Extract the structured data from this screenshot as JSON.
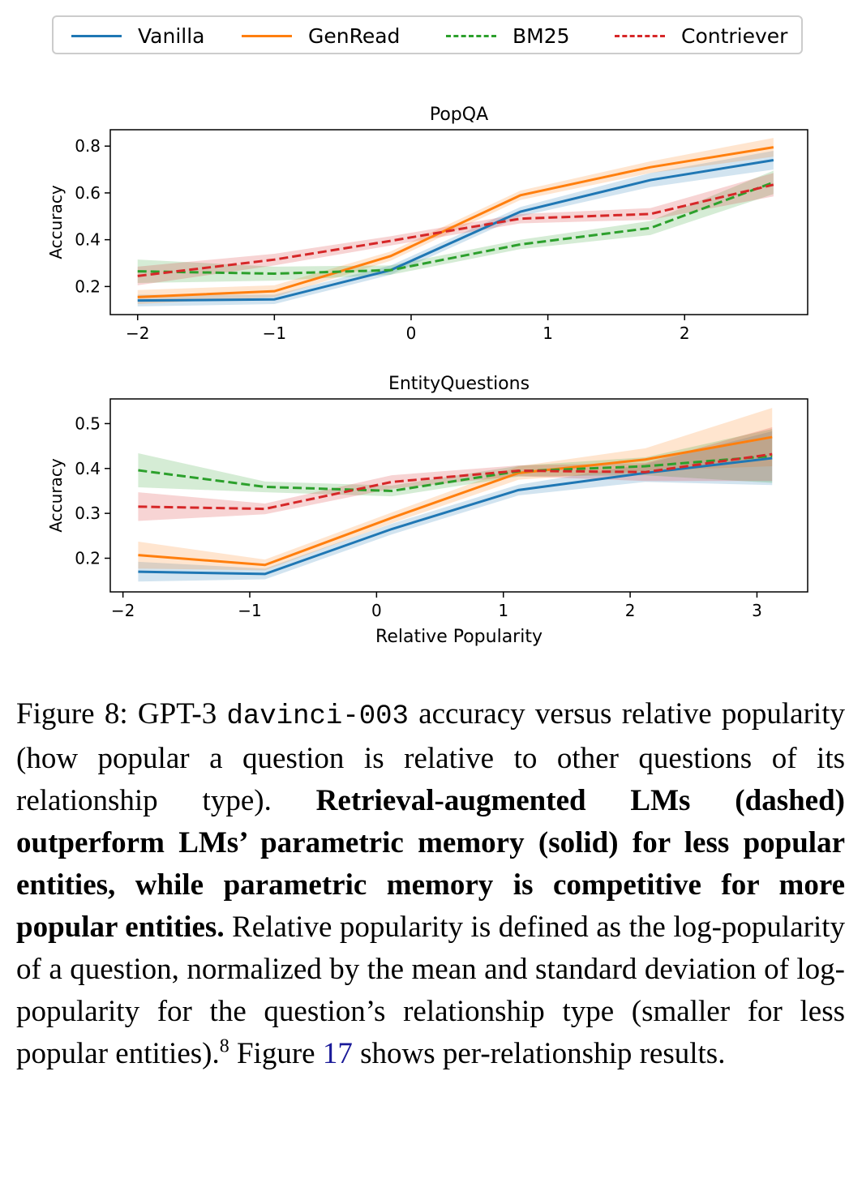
{
  "legend": [
    {
      "name": "Vanilla",
      "color": "#1f77b4",
      "dashed": false
    },
    {
      "name": "GenRead",
      "color": "#ff7f0e",
      "dashed": false
    },
    {
      "name": "BM25",
      "color": "#2ca02c",
      "dashed": true
    },
    {
      "name": "Contriever",
      "color": "#d62728",
      "dashed": true
    }
  ],
  "chart_data": [
    {
      "type": "line",
      "title": "PopQA",
      "xlabel": "",
      "ylabel": "Accuracy",
      "xlim": [
        -2.2,
        2.9
      ],
      "ylim": [
        0.08,
        0.87
      ],
      "xticks": [
        -2,
        -1,
        0,
        1,
        2
      ],
      "xtick_labels": [
        "−2",
        "−1",
        "0",
        "1",
        "2"
      ],
      "yticks": [
        0.2,
        0.4,
        0.6,
        0.8
      ],
      "ytick_labels": [
        "0.2",
        "0.4",
        "0.6",
        "0.8"
      ],
      "x": [
        -2.0,
        -1.0,
        -0.15,
        0.8,
        1.75,
        2.65
      ],
      "series": [
        {
          "name": "Vanilla",
          "color": "#1f77b4",
          "dashed": false,
          "values": [
            0.14,
            0.145,
            0.27,
            0.52,
            0.655,
            0.74
          ],
          "band": [
            0.025,
            0.02,
            0.02,
            0.02,
            0.03,
            0.04
          ]
        },
        {
          "name": "GenRead",
          "color": "#ff7f0e",
          "dashed": false,
          "values": [
            0.155,
            0.18,
            0.33,
            0.59,
            0.71,
            0.795
          ],
          "band": [
            0.03,
            0.025,
            0.02,
            0.02,
            0.025,
            0.04
          ]
        },
        {
          "name": "BM25",
          "color": "#2ca02c",
          "dashed": true,
          "values": [
            0.265,
            0.255,
            0.27,
            0.38,
            0.45,
            0.645
          ],
          "band": [
            0.05,
            0.03,
            0.02,
            0.02,
            0.03,
            0.05
          ]
        },
        {
          "name": "Contriever",
          "color": "#d62728",
          "dashed": true,
          "values": [
            0.245,
            0.315,
            0.395,
            0.49,
            0.51,
            0.635
          ],
          "band": [
            0.04,
            0.025,
            0.02,
            0.02,
            0.025,
            0.05
          ]
        }
      ]
    },
    {
      "type": "line",
      "title": "EntityQuestions",
      "xlabel": "Relative Popularity",
      "ylabel": "Accuracy",
      "xlim": [
        -2.1,
        3.4
      ],
      "ylim": [
        0.125,
        0.555
      ],
      "xticks": [
        -2,
        -1,
        0,
        1,
        2,
        3
      ],
      "xtick_labels": [
        "−2",
        "−1",
        "0",
        "1",
        "2",
        "3"
      ],
      "yticks": [
        0.2,
        0.3,
        0.4,
        0.5
      ],
      "ytick_labels": [
        "0.2",
        "0.3",
        "0.4",
        "0.5"
      ],
      "x": [
        -1.88,
        -0.88,
        0.12,
        1.12,
        2.12,
        3.12
      ],
      "series": [
        {
          "name": "Vanilla",
          "color": "#1f77b4",
          "dashed": false,
          "values": [
            0.17,
            0.165,
            0.265,
            0.352,
            0.39,
            0.423
          ],
          "band": [
            0.022,
            0.012,
            0.012,
            0.012,
            0.02,
            0.06
          ]
        },
        {
          "name": "GenRead",
          "color": "#ff7f0e",
          "dashed": false,
          "values": [
            0.207,
            0.185,
            0.29,
            0.39,
            0.42,
            0.47
          ],
          "band": [
            0.03,
            0.012,
            0.012,
            0.015,
            0.025,
            0.065
          ]
        },
        {
          "name": "BM25",
          "color": "#2ca02c",
          "dashed": true,
          "values": [
            0.396,
            0.359,
            0.35,
            0.394,
            0.405,
            0.428
          ],
          "band": [
            0.038,
            0.012,
            0.012,
            0.012,
            0.02,
            0.06
          ]
        },
        {
          "name": "Contriever",
          "color": "#d62728",
          "dashed": true,
          "values": [
            0.315,
            0.31,
            0.37,
            0.395,
            0.392,
            0.432
          ],
          "band": [
            0.032,
            0.012,
            0.015,
            0.012,
            0.02,
            0.06
          ]
        }
      ]
    }
  ],
  "caption": {
    "label": "Figure 8: GPT-3 ",
    "model": "davinci-003",
    "text1": " accuracy versus relative popularity (how popular a question is relative to other questions of its relationship type). ",
    "bold": "Retrieval-augmented LMs (dashed) outperform LMs’ parametric memory (solid) for less popular entities, while parametric memory is competitive for more popular entities.",
    "text2": " Relative popularity is defined as the log-popularity of a question, normalized by the mean and standard deviation of log-popularity for the question’s relationship type (smaller for less popular entities).",
    "footnote": "8",
    "text3": " Figure ",
    "figref": "17",
    "text4": " shows per-relationship results."
  }
}
